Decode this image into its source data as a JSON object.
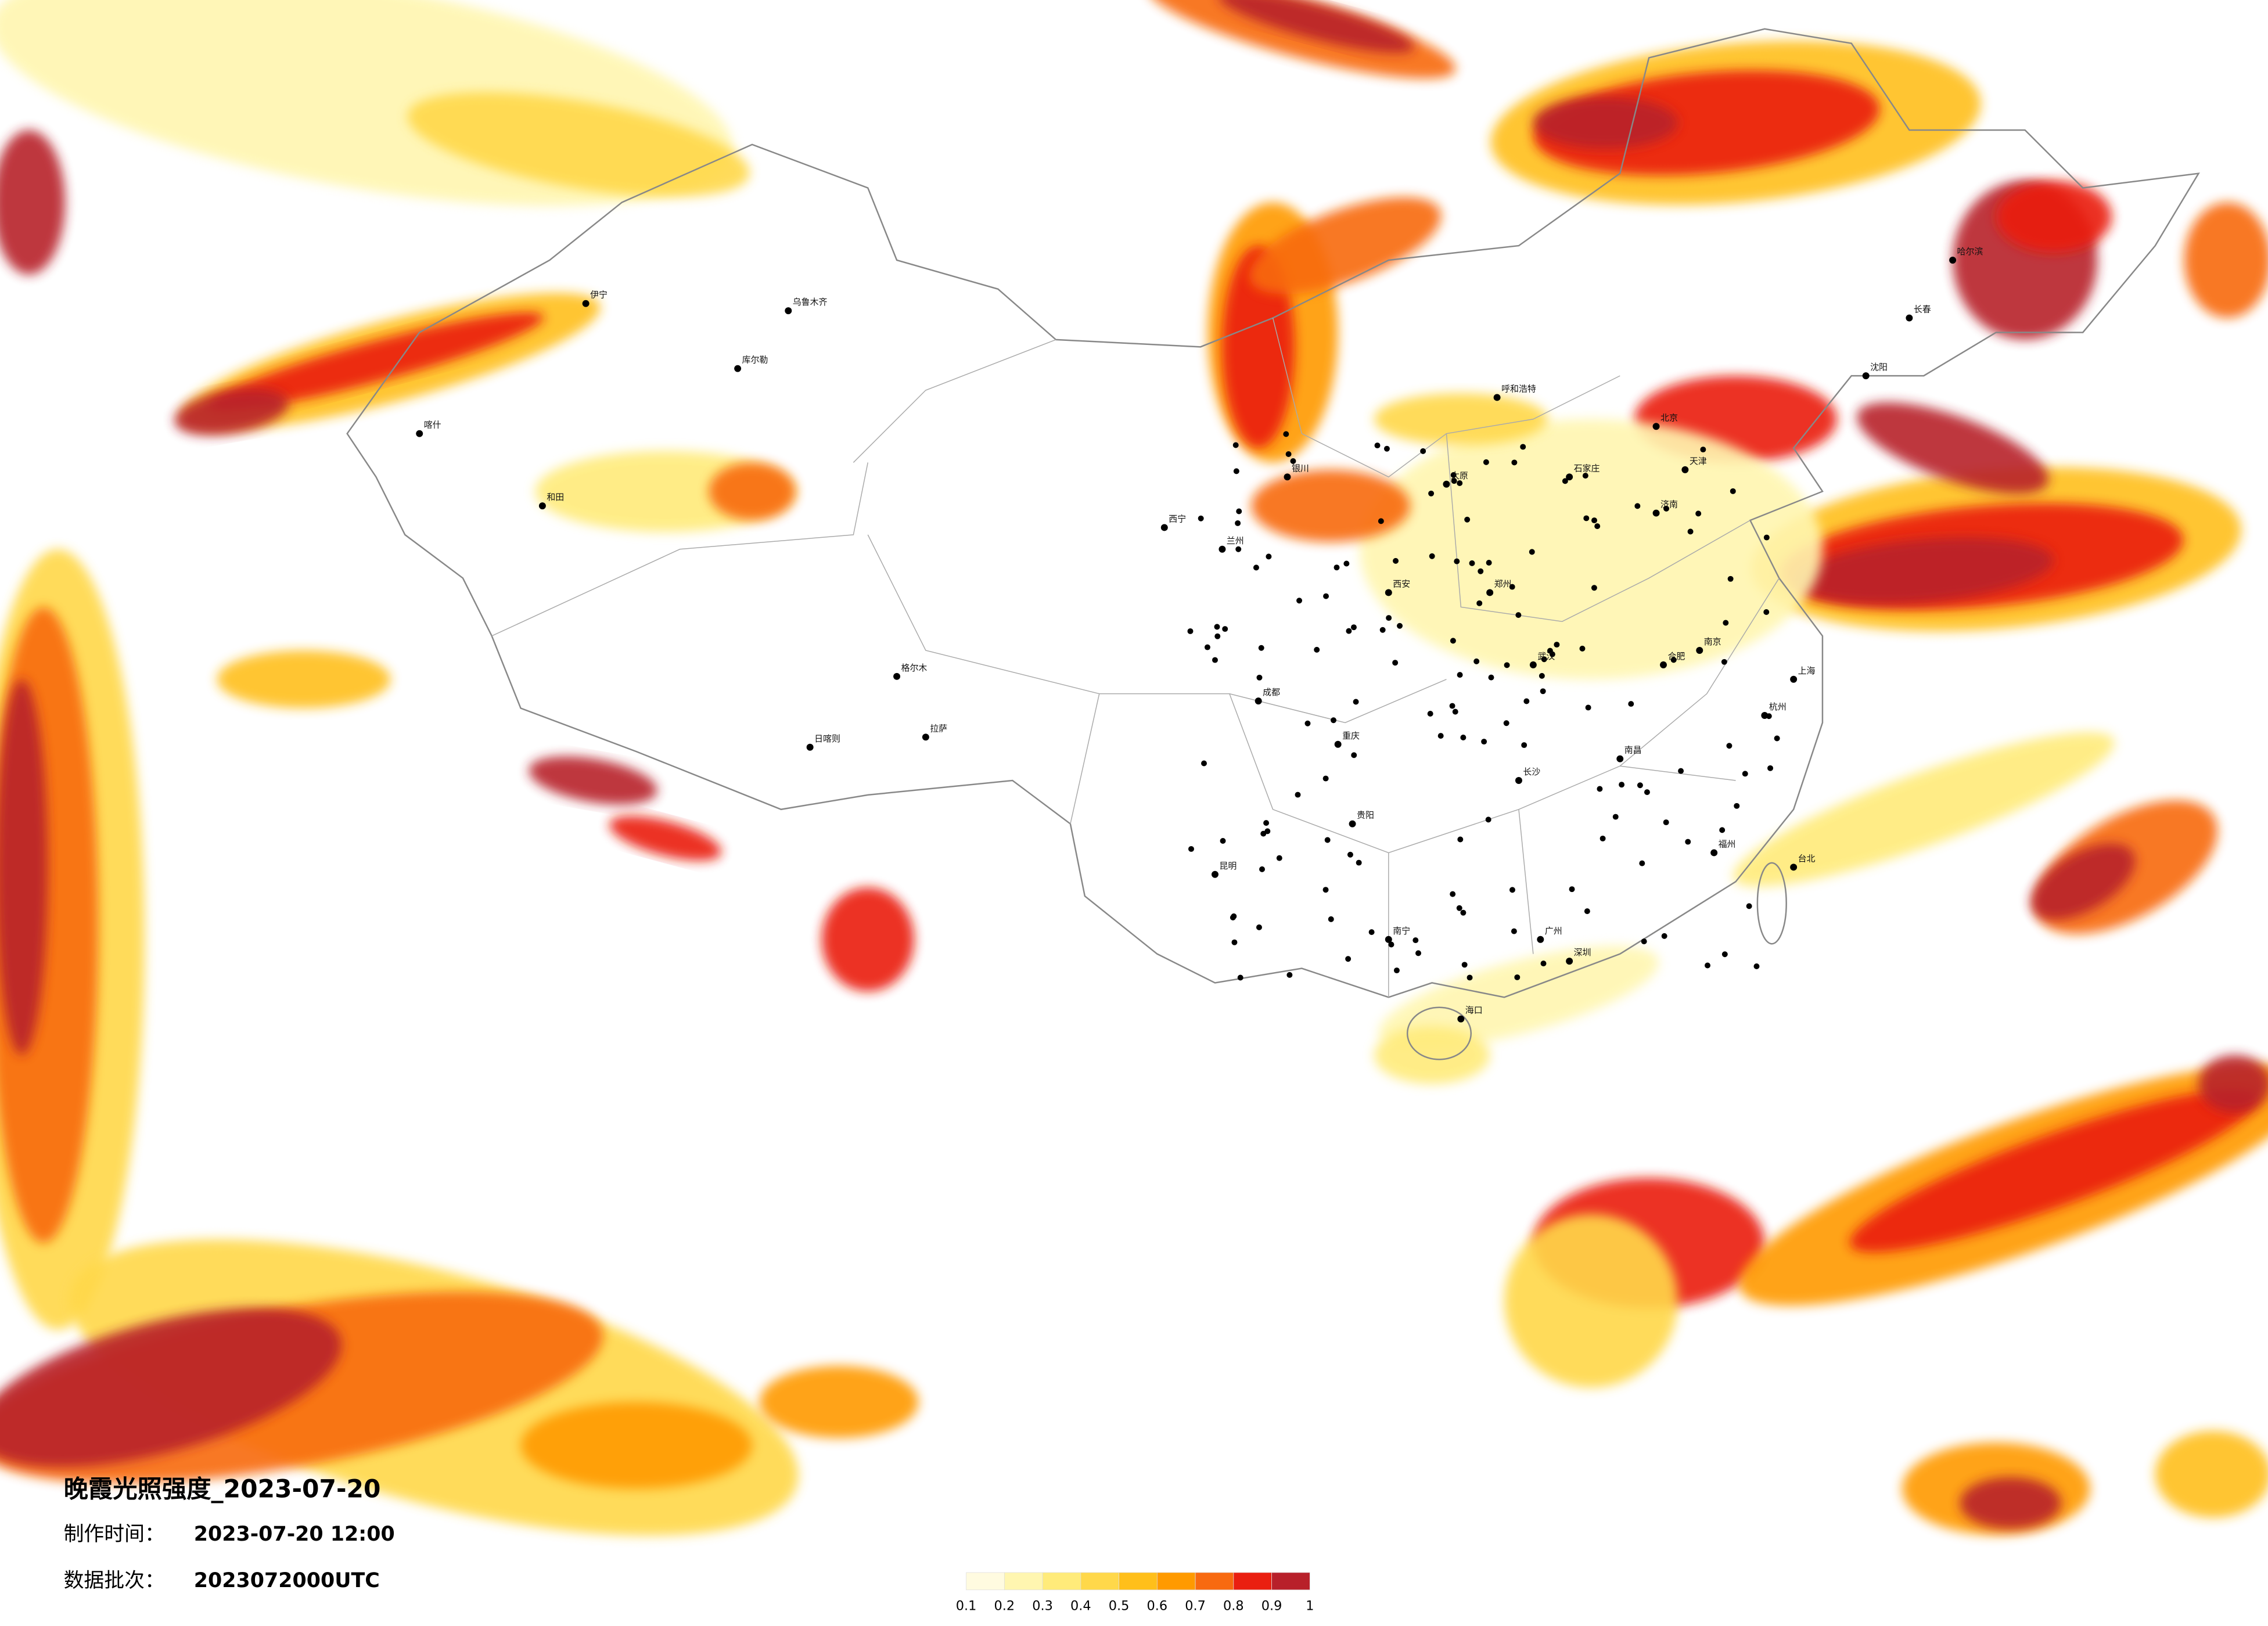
{
  "header": {
    "title": "晚霞光照强度_2023-07-20",
    "made_label": "制作时间：",
    "made_value": "2023-07-20 12:00",
    "batch_label": "数据批次：",
    "batch_value": "2023072000UTC"
  },
  "legend": {
    "levels": [
      0.1,
      0.2,
      0.3,
      0.4,
      0.5,
      0.6,
      0.7,
      0.8,
      0.9,
      1
    ],
    "colors": [
      "#fffbe0",
      "#fff6b0",
      "#ffeb7a",
      "#ffd84a",
      "#ffbf1a",
      "#ff9a00",
      "#f86a10",
      "#ea1f10",
      "#b8202a"
    ]
  },
  "cities": [
    "北京",
    "天津",
    "上海",
    "广州",
    "深圳",
    "重庆",
    "成都",
    "武汉",
    "西安",
    "兰州",
    "西宁",
    "拉萨",
    "乌鲁木齐",
    "哈尔滨",
    "长春",
    "沈阳",
    "呼和浩特",
    "银川",
    "昆明",
    "贵阳",
    "南宁",
    "海口",
    "福州",
    "杭州",
    "南京",
    "郑州",
    "长沙",
    "南昌",
    "合肥",
    "济南",
    "太原",
    "石家庄",
    "台北",
    "喀什",
    "和田",
    "库尔勒",
    "格尔木",
    "日喀则",
    "伊宁"
  ]
}
